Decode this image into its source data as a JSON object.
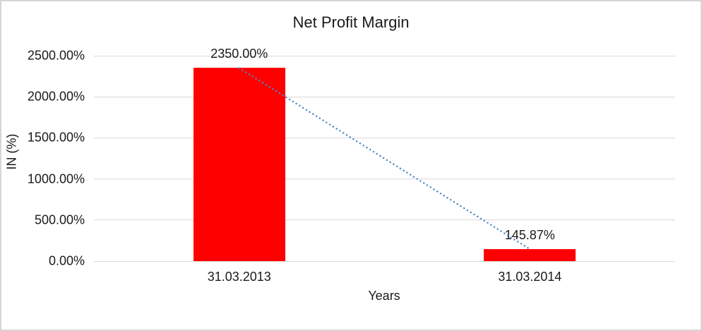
{
  "colors": {
    "bar": "#FF0000",
    "trendline": "#4E87C3",
    "gridline": "#D9D9D9",
    "text": "#1A1A1A",
    "chart_border": "#D5D5D5",
    "background": "#FFFFFF"
  },
  "chart_data": {
    "type": "bar",
    "title": "Net Profit Margin",
    "xlabel": "Years",
    "ylabel": "IN (%)",
    "categories": [
      "31.03.2013",
      "31.03.2014"
    ],
    "series": [
      {
        "name": "Net Profit Margin",
        "values": [
          2350.0,
          145.87
        ],
        "color": "#FF0000"
      }
    ],
    "data_labels": [
      "2350.00%",
      "145.87%"
    ],
    "ylim": [
      0,
      2500
    ],
    "ytick_values": [
      0,
      500,
      1000,
      1500,
      2000,
      2500
    ],
    "ytick_labels": [
      "0.00%",
      "500.00%",
      "1000.00%",
      "1500.00%",
      "2000.00%",
      "2500.00%"
    ],
    "grid": true,
    "legend": "none",
    "trendline": {
      "style": "dotted",
      "color": "#4E87C3",
      "connects": [
        "31.03.2013",
        "31.03.2014"
      ]
    }
  }
}
